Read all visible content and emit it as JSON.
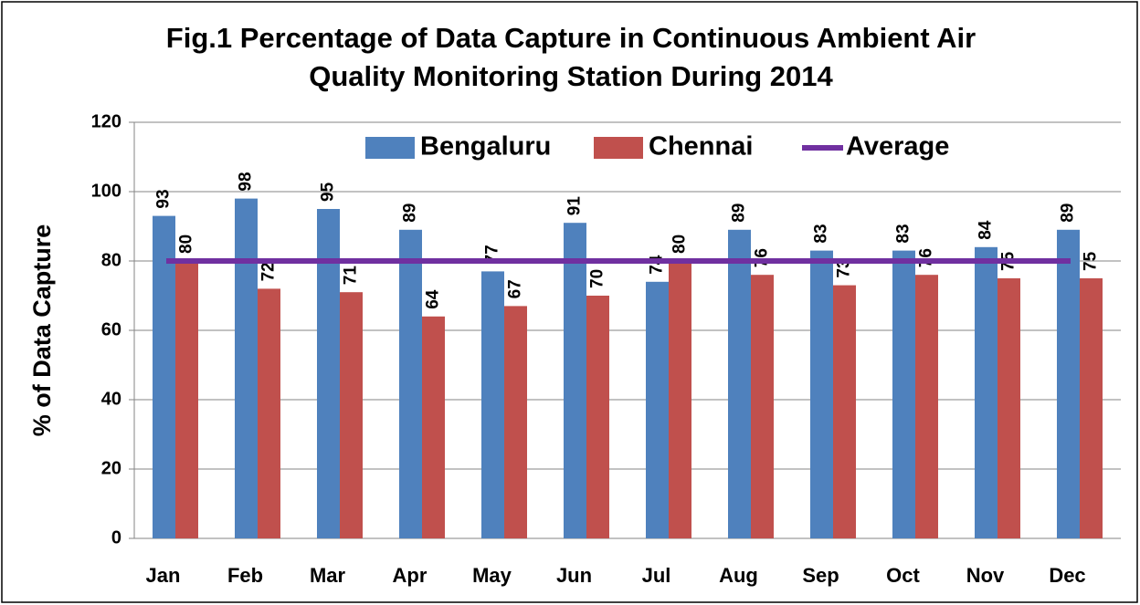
{
  "chart_data": {
    "type": "bar",
    "title": [
      "Fig.1 Percentage of Data Capture in Continuous Ambient Air",
      "Quality Monitoring Station During 2014"
    ],
    "y_label": "% of Data Capture",
    "categories": [
      "Jan",
      "Feb",
      "Mar",
      "Apr",
      "May",
      "Jun",
      "Jul",
      "Aug",
      "Sep",
      "Oct",
      "Nov",
      "Dec"
    ],
    "series": [
      {
        "name": "Bengaluru",
        "color": "#4f81bd",
        "type": "bar",
        "values": [
          93,
          98,
          95,
          89,
          77,
          91,
          74,
          89,
          83,
          83,
          84,
          89
        ]
      },
      {
        "name": "Chennai",
        "color": "#c0504d",
        "type": "bar",
        "values": [
          80,
          72,
          71,
          64,
          67,
          70,
          80,
          76,
          73,
          76,
          75,
          75
        ]
      },
      {
        "name": "Average",
        "color": "#7030a0",
        "type": "line",
        "values": [
          80,
          80,
          80,
          80,
          80,
          80,
          80,
          80,
          80,
          80,
          80,
          80
        ]
      }
    ],
    "ylim": [
      0,
      120
    ],
    "yticks": [
      0,
      20,
      40,
      60,
      80,
      100,
      120
    ],
    "grid": true,
    "legend": "top"
  }
}
